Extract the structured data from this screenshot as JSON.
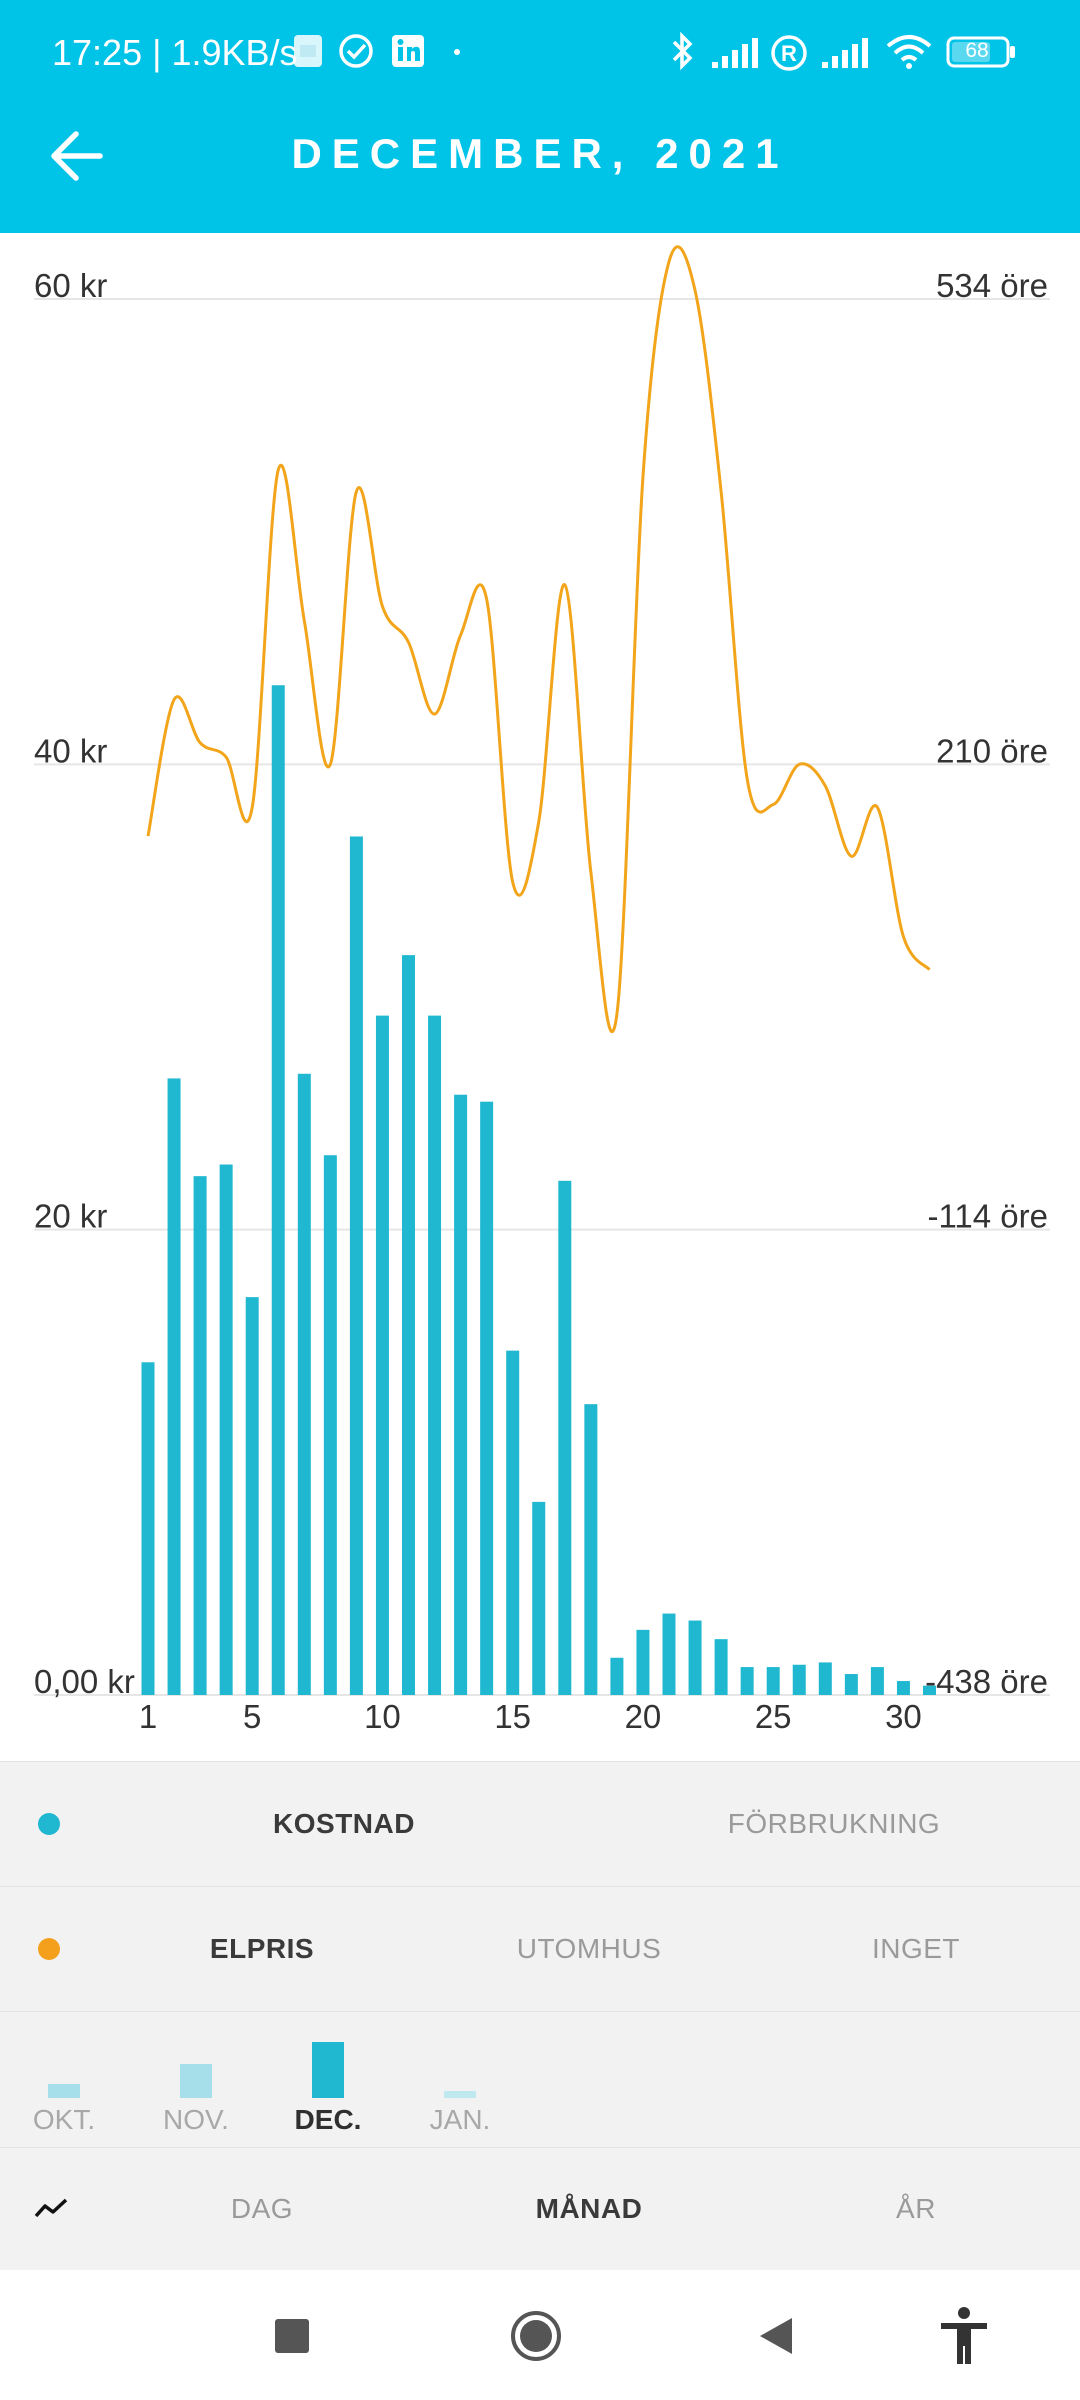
{
  "status_bar": {
    "time_speed": "17:25 | 1.9KB/s",
    "battery": "68"
  },
  "header": {
    "title": "DECEMBER, 2021",
    "background_color": "#00c3e8"
  },
  "chart_data": {
    "type": "bar",
    "bar_color": "#1fb8d0",
    "line_color": "#f2a51a",
    "x": [
      1,
      2,
      3,
      4,
      5,
      6,
      7,
      8,
      9,
      10,
      11,
      12,
      13,
      14,
      15,
      16,
      17,
      18,
      19,
      20,
      21,
      22,
      23,
      24,
      25,
      26,
      27,
      28,
      29,
      30,
      31
    ],
    "x_tick_labels": [
      "1",
      "5",
      "10",
      "15",
      "20",
      "25",
      "30"
    ],
    "x_tick_values": [
      1,
      5,
      10,
      15,
      20,
      25,
      30
    ],
    "y_left_tick_labels": [
      "60 kr",
      "40 kr",
      "20 kr",
      "0,00 kr"
    ],
    "y_left_tick_values": [
      60,
      40,
      20,
      0
    ],
    "y_right_tick_labels": [
      "534 öre",
      "210 öre",
      "-114 öre",
      "-438 öre"
    ],
    "y_right_tick_values": [
      534,
      210,
      -114,
      -438
    ],
    "ylim_left": [
      0,
      60
    ],
    "ylim_right": [
      -438,
      534
    ],
    "grid": true,
    "series": [
      {
        "name": "KOSTNAD",
        "axis": "left",
        "type": "bar",
        "values": [
          14.3,
          26.5,
          22.3,
          22.8,
          17.1,
          43.4,
          26.7,
          23.2,
          36.9,
          29.2,
          31.8,
          29.2,
          25.8,
          25.5,
          14.8,
          8.3,
          22.1,
          12.5,
          1.6,
          2.8,
          3.5,
          3.2,
          2.4,
          1.2,
          1.2,
          1.3,
          1.4,
          0.9,
          1.2,
          0.6,
          0.4
        ]
      },
      {
        "name": "ELPRIS",
        "axis": "right",
        "type": "line",
        "values": [
          160,
          255,
          225,
          215,
          180,
          415,
          310,
          210,
          400,
          320,
          295,
          245,
          300,
          325,
          128,
          170,
          335,
          135,
          36,
          410,
          560,
          540,
          400,
          200,
          182,
          210,
          195,
          146,
          180,
          90,
          67
        ]
      }
    ]
  },
  "metric_panel": {
    "dot_color": "#1fb8d0",
    "options": [
      {
        "label": "KOSTNAD",
        "selected": true
      },
      {
        "label": "FÖRBRUKNING",
        "selected": false
      }
    ]
  },
  "overlay_panel": {
    "dot_color": "#f4a01c",
    "options": [
      {
        "label": "ELPRIS",
        "selected": true
      },
      {
        "label": "UTOMHUS",
        "selected": false
      },
      {
        "label": "INGET",
        "selected": false
      }
    ]
  },
  "months_panel": {
    "months": [
      {
        "label": "OKT.",
        "level": 0.25,
        "selected": false
      },
      {
        "label": "NOV.",
        "level": 0.6,
        "selected": false
      },
      {
        "label": "DEC.",
        "level": 1.0,
        "selected": true
      },
      {
        "label": "JAN.",
        "level": 0.12,
        "selected": false
      }
    ]
  },
  "period_panel": {
    "icon": "trend-line-icon",
    "options": [
      {
        "label": "DAG",
        "selected": false
      },
      {
        "label": "MÅNAD",
        "selected": true
      },
      {
        "label": "ÅR",
        "selected": false
      }
    ]
  },
  "nav_bar": {
    "icons": [
      "recents-square-icon",
      "home-circle-icon",
      "back-triangle-icon",
      "accessibility-icon"
    ]
  }
}
